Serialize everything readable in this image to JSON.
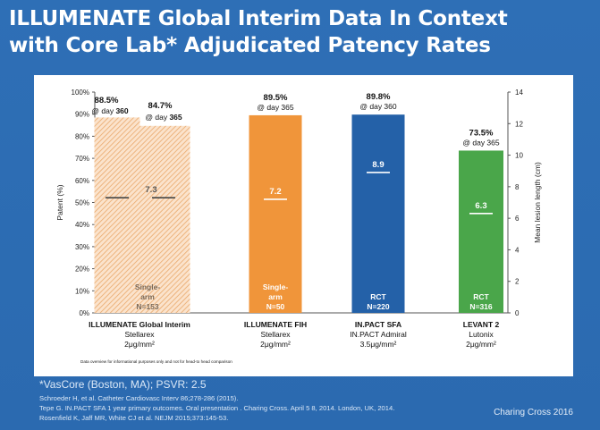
{
  "slide": {
    "title_line1": "ILLUMENATE Global Interim Data In Context",
    "title_line2": "with Core Lab* Adjudicated Patency Rates",
    "footnote": "*VasCore (Boston, MA); PSVR: 2.5",
    "references": [
      "Schroeder H, et al. Catheter Cardiovasc Interv 86;278-286 (2015).",
      "Tepe G. IN.PACT SFA 1 year primary outcomes. Oral presentation . Charing Cross. April 5  8, 2014. London, UK, 2014.",
      "Rosenfield K, Jaff MR, White CJ et al. NEJM 2015;373:145-53."
    ],
    "conference": "Charing Cross 2016"
  },
  "chart_data": {
    "type": "bar",
    "ylabel": "Patent (%)",
    "y2label": "Mean lesion length (cm)",
    "ylim": [
      0,
      100
    ],
    "y2lim": [
      0,
      14
    ],
    "yticks": [
      "0%",
      "10%",
      "20%",
      "30%",
      "40%",
      "50%",
      "60%",
      "70%",
      "80%",
      "90%",
      "100%"
    ],
    "y2ticks": [
      "0",
      "2",
      "4",
      "6",
      "8",
      "10",
      "12",
      "14"
    ],
    "disclaimer": "Data overview for informational purposes only and not for head-to head comparison",
    "bars": [
      {
        "value": 88.5,
        "label": "88.5%",
        "sublabel": "@ day",
        "day": "360",
        "color": "#f5c9a0",
        "hatched": true,
        "lesion_length": 7.3,
        "lesion_label": "7.3"
      },
      {
        "value": 84.7,
        "label": "84.7%",
        "sublabel": "@ day",
        "day": "365",
        "color": "#f5c9a0",
        "hatched": true,
        "lesion_length": 7.3
      },
      {
        "value": 89.5,
        "label": "89.5%",
        "sublabel": "@ day 365",
        "color": "#f0953a",
        "hatched": false,
        "lesion_length": 7.2,
        "lesion_label": "7.2",
        "design_line1": "Single-",
        "design_line2": "arm",
        "n": "N=50"
      },
      {
        "value": 89.8,
        "label": "89.8%",
        "sublabel": "@ day 360",
        "color": "#2461a8",
        "hatched": false,
        "lesion_length": 8.9,
        "lesion_label": "8.9",
        "design_line1": "RCT",
        "n": "N=220"
      },
      {
        "value": 73.5,
        "label": "73.5%",
        "sublabel": "@ day 365",
        "color": "#4aa64a",
        "hatched": false,
        "lesion_length": 6.3,
        "lesion_label": "6.3",
        "design_line1": "RCT",
        "n": "N=316"
      }
    ],
    "group1_design_line1": "Single-",
    "group1_design_line2": "arm",
    "group1_n": "N=153",
    "studies": [
      {
        "name": "ILLUMENATE Global Interim",
        "device": "Stellarex",
        "dose": "2μg/mm²"
      },
      {
        "name": "ILLUMENATE FIH",
        "device": "Stellarex",
        "dose": "2μg/mm²"
      },
      {
        "name": "IN.PACT SFA",
        "device": "IN.PACT Admiral",
        "dose": "3.5μg/mm²"
      },
      {
        "name": "LEVANT 2",
        "device": "Lutonix",
        "dose": "2μg/mm²"
      }
    ]
  }
}
